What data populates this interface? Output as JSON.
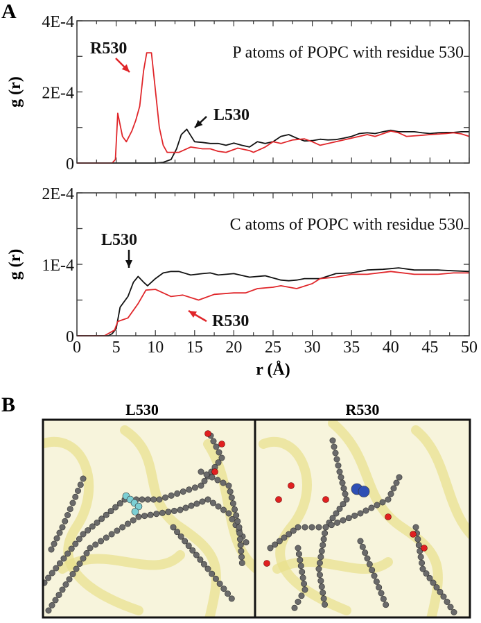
{
  "panel_labels": {
    "a": "A",
    "b": "B"
  },
  "colors": {
    "L530": "#111111",
    "R530": "#e0262a",
    "axis": "#333333"
  },
  "chart_data": [
    {
      "type": "line",
      "title": "P atoms of POPC with residue 530",
      "xlabel": "",
      "ylabel": "g (r)",
      "xlim": [
        0,
        50
      ],
      "ylim": [
        0,
        0.0004
      ],
      "yticks": [
        0,
        0.0001,
        0.0002,
        0.0003,
        0.0004
      ],
      "ytick_labels": [
        "0",
        "",
        "2E-4",
        "",
        "4E-4"
      ],
      "grid": false,
      "annotations": [
        {
          "text": "R530",
          "series": "R530"
        },
        {
          "text": "L530",
          "series": "L530"
        }
      ],
      "series": [
        {
          "name": "L530",
          "color": "#111111",
          "x": [
            0,
            10,
            11,
            12,
            12.7,
            13.3,
            14,
            15,
            16,
            17,
            18,
            19,
            20,
            21,
            22,
            23,
            24,
            25,
            26,
            27,
            28,
            29,
            30,
            31,
            32,
            33,
            34,
            35,
            36,
            37,
            38,
            39,
            40,
            41,
            42,
            43,
            44,
            45,
            46,
            47,
            48,
            49,
            50
          ],
          "y": [
            0,
            0,
            2e-06,
            1e-05,
            4e-05,
            8e-05,
            9.5e-05,
            6e-05,
            5.8e-05,
            5.5e-05,
            5.5e-05,
            5e-05,
            5.6e-05,
            5e-05,
            4.5e-05,
            6e-05,
            5.5e-05,
            6e-05,
            7.5e-05,
            8e-05,
            7e-05,
            6.2e-05,
            6.3e-05,
            6.7e-05,
            6.5e-05,
            6.6e-05,
            7e-05,
            7.5e-05,
            8.3e-05,
            8.5e-05,
            8.3e-05,
            8.8e-05,
            9.2e-05,
            8.8e-05,
            8.8e-05,
            8.8e-05,
            8.5e-05,
            8.3e-05,
            8.5e-05,
            8.6e-05,
            8.6e-05,
            8.8e-05,
            8.8e-05
          ]
        },
        {
          "name": "R530",
          "color": "#e0262a",
          "x": [
            0,
            4.5,
            4.9,
            5.2,
            5.8,
            6.3,
            7,
            7.5,
            8,
            8.5,
            8.9,
            9.5,
            10.5,
            11,
            11.5,
            13,
            14.5,
            16,
            17,
            18,
            19,
            20.5,
            22,
            22.5,
            24,
            25,
            26,
            27.5,
            29,
            30,
            31,
            33,
            35,
            37,
            38,
            40,
            41,
            42,
            44,
            45,
            47,
            48,
            49,
            50
          ],
          "y": [
            0,
            0,
            1e-05,
            0.00014,
            7.5e-05,
            6e-05,
            9e-05,
            0.00012,
            0.00016,
            0.00026,
            0.00031,
            0.00031,
            0.0001,
            5e-05,
            3e-05,
            3e-05,
            4.5e-05,
            4e-05,
            4e-05,
            3.3e-05,
            3e-05,
            4.2e-05,
            3.5e-05,
            3e-05,
            4.5e-05,
            6e-05,
            5.5e-05,
            6.5e-05,
            6.8e-05,
            6e-05,
            5e-05,
            6e-05,
            7e-05,
            8e-05,
            7.5e-05,
            9e-05,
            8.5e-05,
            7.5e-05,
            7.8e-05,
            8e-05,
            8.3e-05,
            8.5e-05,
            8.2e-05,
            7.5e-05
          ]
        }
      ]
    },
    {
      "type": "line",
      "title": "C atoms of POPC with residue 530",
      "xlabel": "r (Å)",
      "ylabel": "g (r)",
      "xlim": [
        0,
        50
      ],
      "ylim": [
        0,
        0.0002
      ],
      "xticks": [
        0,
        5,
        10,
        15,
        20,
        25,
        30,
        35,
        40,
        45,
        50
      ],
      "xtick_labels": [
        "0",
        "5",
        "10",
        "15",
        "20",
        "25",
        "30",
        "35",
        "40",
        "45",
        "50"
      ],
      "yticks": [
        0,
        5e-05,
        0.0001,
        0.00015,
        0.0002
      ],
      "ytick_labels": [
        "0",
        "",
        "1E-4",
        "",
        "2E-4"
      ],
      "grid": false,
      "annotations": [
        {
          "text": "L530",
          "series": "L530"
        },
        {
          "text": "R530",
          "series": "R530"
        }
      ],
      "series": [
        {
          "name": "L530",
          "color": "#111111",
          "x": [
            0,
            4,
            4.5,
            5,
            5.5,
            6.5,
            7.2,
            7.8,
            8.5,
            9,
            10,
            11,
            12,
            13,
            14.5,
            16,
            17,
            18,
            20,
            22,
            24,
            26,
            27,
            28,
            29,
            31,
            33,
            35,
            37,
            39,
            40,
            41,
            43,
            46,
            48,
            50
          ],
          "y": [
            0,
            0,
            3e-06,
            1e-05,
            4e-05,
            5.5e-05,
            7.5e-05,
            8.3e-05,
            7.5e-05,
            7e-05,
            8e-05,
            8.8e-05,
            9e-05,
            9e-05,
            8.5e-05,
            8.7e-05,
            8.8e-05,
            8.5e-05,
            8.7e-05,
            8.2e-05,
            8.4e-05,
            7.8e-05,
            7.7e-05,
            7.8e-05,
            8e-05,
            8e-05,
            8.7e-05,
            8.8e-05,
            9.2e-05,
            9.3e-05,
            9.4e-05,
            9.5e-05,
            9.2e-05,
            9.2e-05,
            9.1e-05,
            9e-05
          ]
        },
        {
          "name": "R530",
          "color": "#e0262a",
          "x": [
            0,
            3.5,
            4.8,
            5.2,
            6.5,
            7.8,
            8.8,
            10,
            12,
            13.5,
            15.5,
            17.5,
            20,
            21.5,
            23,
            25,
            26,
            28,
            30,
            31,
            33,
            35,
            37,
            40,
            43,
            46,
            48,
            50
          ],
          "y": [
            0,
            0,
            8e-06,
            2e-05,
            2.5e-05,
            4.5e-05,
            6.4e-05,
            6.5e-05,
            5.5e-05,
            5.7e-05,
            5e-05,
            5.8e-05,
            6e-05,
            6e-05,
            6.6e-05,
            6.8e-05,
            7e-05,
            6.6e-05,
            7.3e-05,
            8e-05,
            8.2e-05,
            8.6e-05,
            8.6e-05,
            9e-05,
            8.6e-05,
            8.6e-05,
            8.8e-05,
            8.8e-05
          ]
        }
      ]
    }
  ],
  "panel_b": {
    "left_title": "L530",
    "right_title": "R530"
  }
}
